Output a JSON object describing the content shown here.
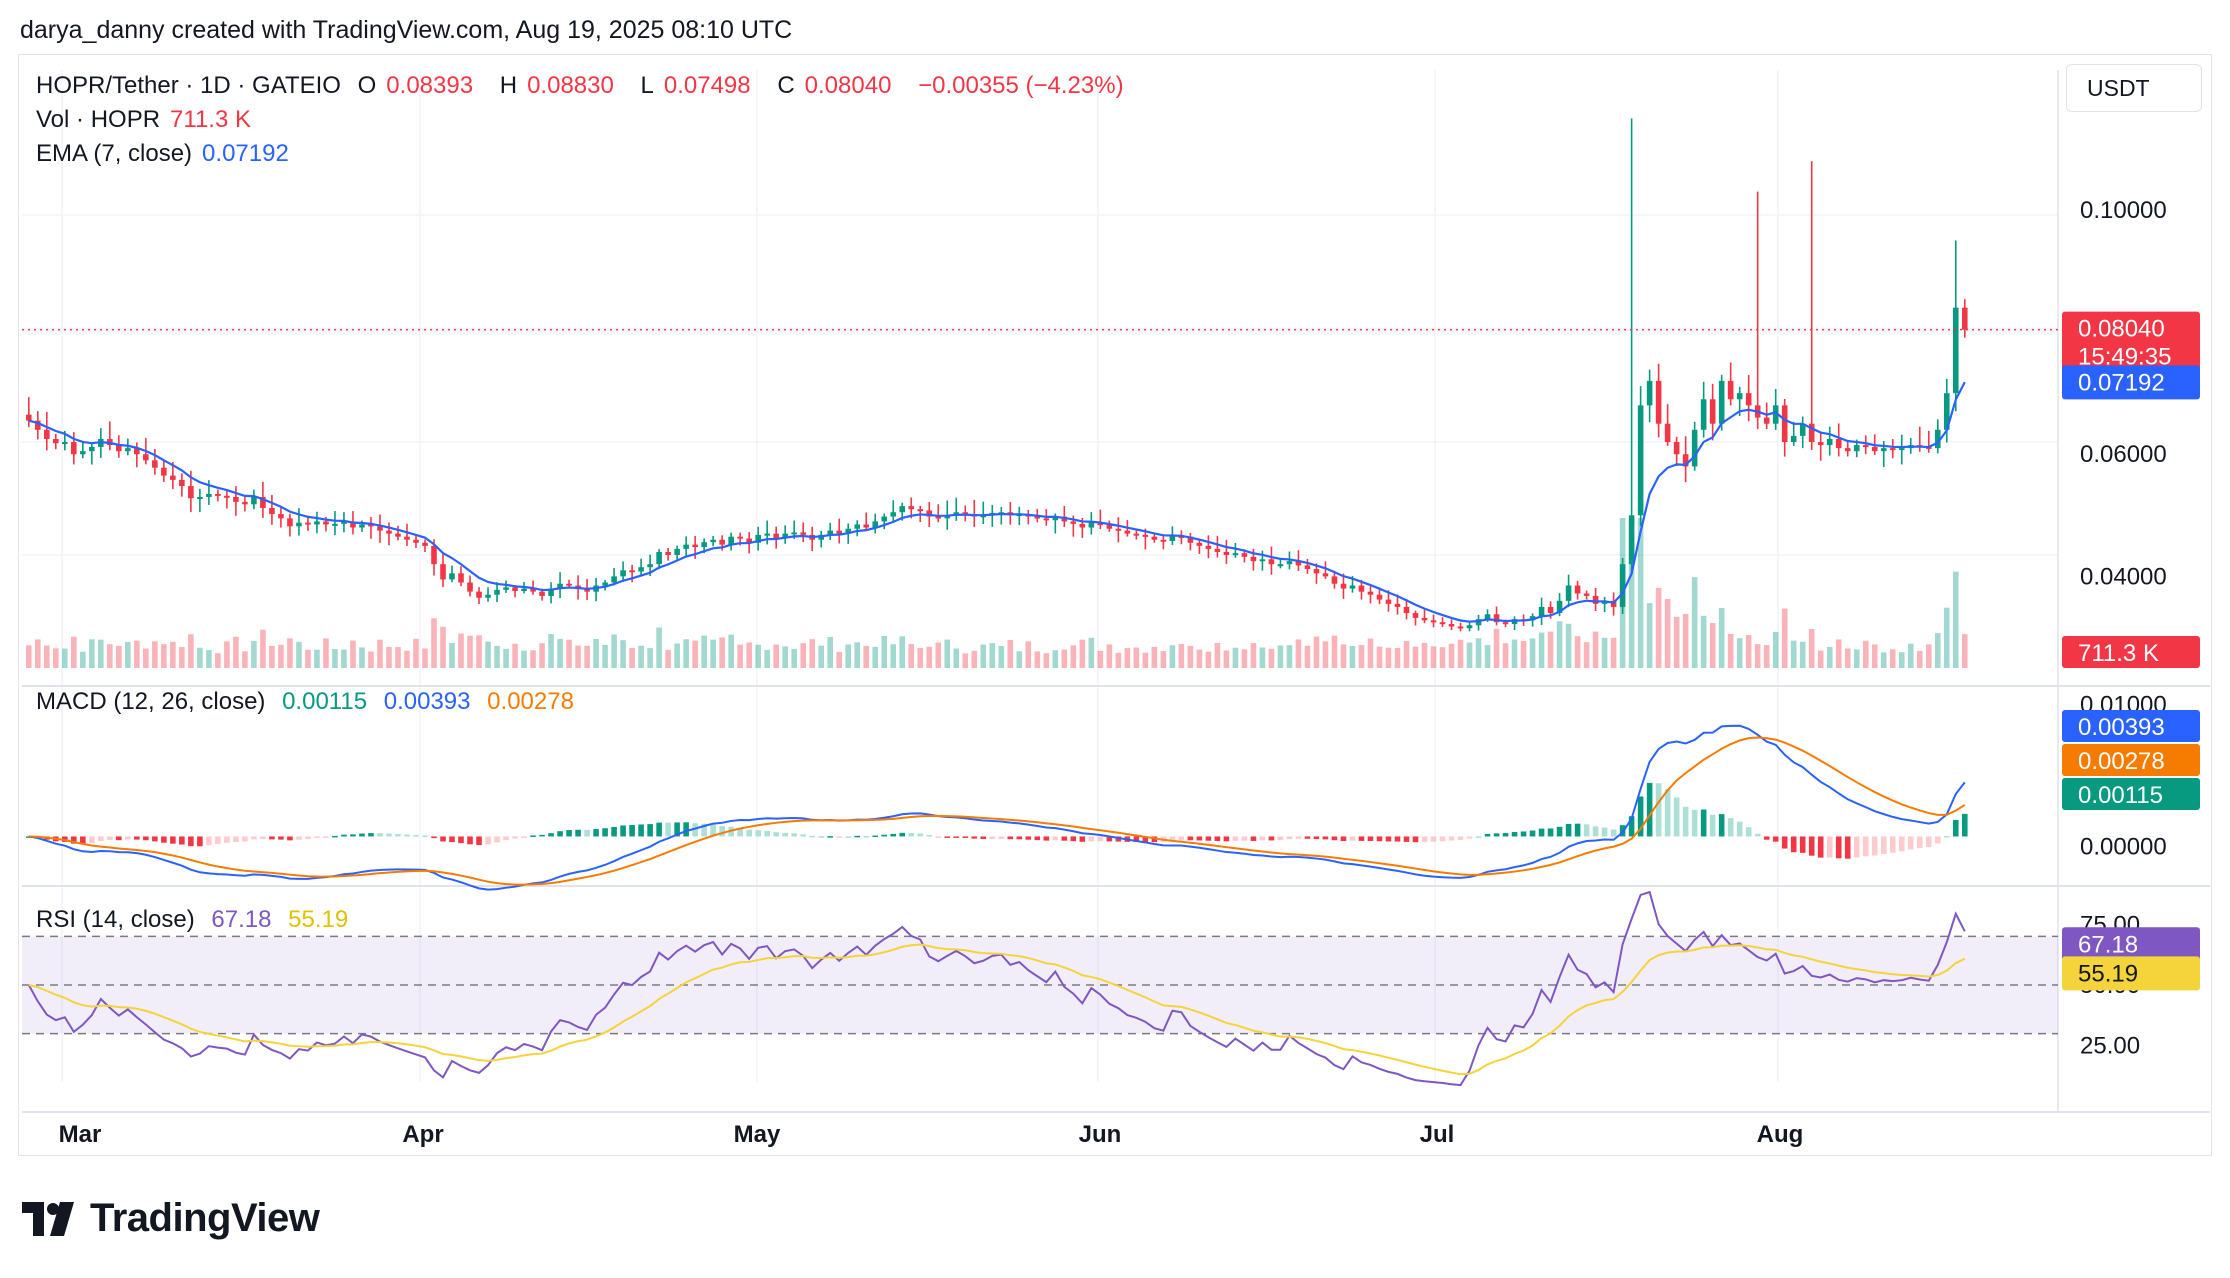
{
  "credit": "darya_danny created with TradingView.com, Aug 19, 2025 08:10 UTC",
  "unit_button": "USDT",
  "brand": "TradingView",
  "colors": {
    "up": "#089981",
    "down": "#f23645",
    "ema": "#2962ff",
    "macd": "#2962ff",
    "signal": "#f57c00",
    "rsi": "#7e57c2",
    "rsi_ma": "#f5d33b"
  },
  "legend": {
    "symbol": "HOPR/Tether · 1D · GATEIO",
    "o_label": "O",
    "o_value": "0.08393",
    "h_label": "H",
    "h_value": "0.08830",
    "l_label": "L",
    "l_value": "0.07498",
    "c_label": "C",
    "c_value": "0.08040",
    "change": "−0.00355 (−4.23%)",
    "vol_label": "Vol · HOPR",
    "vol_value": "711.3 K",
    "ema_label": "EMA (7, close)",
    "ema_value": "0.07192",
    "macd_label": "MACD (12, 26, close)",
    "macd_hist": "0.00115",
    "macd_line": "0.00393",
    "macd_signal": "0.00278",
    "rsi_label": "RSI (14, close)",
    "rsi_value": "67.18",
    "rsi_ma": "55.19"
  },
  "price_axis_labels": [
    "0.10000",
    "0.06000",
    "0.04000"
  ],
  "macd_axis_labels": [
    "0.01000",
    "0.00000"
  ],
  "rsi_axis_labels": [
    "75.00",
    "50.00",
    "25.00"
  ],
  "price_tags": {
    "last": "0.08040",
    "countdown": "15:49:35",
    "ema": "0.07192",
    "volume": "711.3 K",
    "macd_line": "0.00393",
    "macd_signal": "0.00278",
    "macd_hist": "0.00115",
    "rsi": "67.18",
    "rsi_ma": "55.19"
  },
  "x_axis_labels": [
    "Mar",
    "Apr",
    "May",
    "Jun",
    "Jul",
    "Aug"
  ],
  "chart_data": {
    "type": "candlestick",
    "symbol": "HOPR/Tether",
    "interval": "1D",
    "exchange": "GATEIO",
    "price_range": [
      0.025,
      0.118
    ],
    "rsi_bands": [
      30,
      50,
      70
    ],
    "candles_close": [
      0.0655,
      0.064,
      0.0625,
      0.0618,
      0.062,
      0.06,
      0.0605,
      0.0612,
      0.0625,
      0.0615,
      0.0605,
      0.061,
      0.06,
      0.059,
      0.0578,
      0.0565,
      0.0558,
      0.0548,
      0.0528,
      0.053,
      0.0535,
      0.0532,
      0.053,
      0.0522,
      0.0518,
      0.053,
      0.0512,
      0.0502,
      0.0495,
      0.0482,
      0.0488,
      0.0485,
      0.049,
      0.0485,
      0.0486,
      0.049,
      0.048,
      0.0485,
      0.0482,
      0.0475,
      0.047,
      0.0465,
      0.046,
      0.0455,
      0.045,
      0.042,
      0.0395,
      0.0405,
      0.039,
      0.0375,
      0.0365,
      0.037,
      0.0378,
      0.0382,
      0.0376,
      0.038,
      0.0375,
      0.0368,
      0.038,
      0.0388,
      0.0385,
      0.0379,
      0.0375,
      0.0385,
      0.039,
      0.04,
      0.041,
      0.0408,
      0.0415,
      0.042,
      0.044,
      0.0435,
      0.0445,
      0.0452,
      0.0448,
      0.0456,
      0.046,
      0.0452,
      0.0465,
      0.0462,
      0.0455,
      0.0468,
      0.047,
      0.0462,
      0.047,
      0.0472,
      0.0468,
      0.046,
      0.0468,
      0.0475,
      0.047,
      0.0478,
      0.0485,
      0.048,
      0.049,
      0.0498,
      0.0505,
      0.0515,
      0.051,
      0.0508,
      0.0498,
      0.0495,
      0.05,
      0.0505,
      0.0502,
      0.0498,
      0.05,
      0.0504,
      0.0505,
      0.05,
      0.0502,
      0.0498,
      0.0495,
      0.0492,
      0.0498,
      0.049,
      0.0486,
      0.048,
      0.0488,
      0.0484,
      0.0478,
      0.0475,
      0.047,
      0.0468,
      0.0465,
      0.046,
      0.0458,
      0.0466,
      0.0465,
      0.0455,
      0.045,
      0.0445,
      0.044,
      0.0435,
      0.0438,
      0.0432,
      0.0425,
      0.0428,
      0.042,
      0.042,
      0.0425,
      0.0418,
      0.0412,
      0.0405,
      0.04,
      0.0388,
      0.038,
      0.0385,
      0.0375,
      0.037,
      0.0362,
      0.0355,
      0.035,
      0.034,
      0.0332,
      0.0328,
      0.0325,
      0.0322,
      0.0318,
      0.0315,
      0.032,
      0.033,
      0.0338,
      0.0325,
      0.0322,
      0.033,
      0.0328,
      0.0335,
      0.035,
      0.034,
      0.036,
      0.0385,
      0.0372,
      0.0368,
      0.0355,
      0.036,
      0.035,
      0.042,
      0.05,
      0.068,
      0.072,
      0.065,
      0.062,
      0.06,
      0.058,
      0.064,
      0.069,
      0.065,
      0.072,
      0.069,
      0.07,
      0.068,
      0.066,
      0.065,
      0.068,
      0.062,
      0.063,
      0.065,
      0.062,
      0.0615,
      0.0625,
      0.061,
      0.0605,
      0.0615,
      0.0612,
      0.0605,
      0.061,
      0.0608,
      0.061,
      0.0615,
      0.0612,
      0.061,
      0.064,
      0.07,
      0.084,
      0.0804
    ],
    "volume": {
      "last": "711.3K"
    },
    "ema7_last": 0.07192,
    "macd_last": {
      "macd": 0.00393,
      "signal": 0.00278,
      "histogram": 0.00115
    },
    "rsi_last": {
      "rsi": 67.18,
      "ma": 55.19
    }
  }
}
